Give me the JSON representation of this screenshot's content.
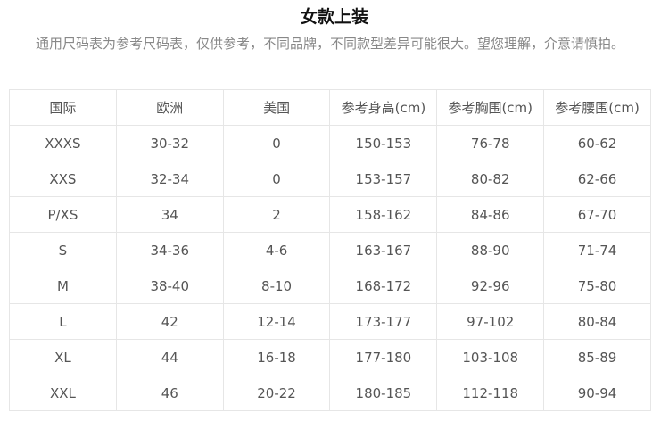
{
  "title": "女款上装",
  "subtitle": "通用尺码表为参考尺码表，仅供参考，不同品牌，不同款型差异可能很大。望您理解，介意请慎拍。",
  "headers": [
    "国际",
    "欧洲",
    "美国",
    "参考身高(cm)",
    "参考胸围(cm)",
    "参考腰围(cm)"
  ],
  "rows": [
    [
      "XXXS",
      "30-32",
      "0",
      "150-153",
      "76-78",
      "60-62"
    ],
    [
      "XXS",
      "32-34",
      "0",
      "153-157",
      "80-82",
      "62-66"
    ],
    [
      "P/XS",
      "34",
      "2",
      "158-162",
      "84-86",
      "67-70"
    ],
    [
      "S",
      "34-36",
      "4-6",
      "163-167",
      "88-90",
      "71-74"
    ],
    [
      "M",
      "38-40",
      "8-10",
      "168-172",
      "92-96",
      "75-80"
    ],
    [
      "L",
      "42",
      "12-14",
      "173-177",
      "97-102",
      "80-84"
    ],
    [
      "XL",
      "44",
      "16-18",
      "177-180",
      "103-108",
      "85-89"
    ],
    [
      "XXL",
      "46",
      "20-22",
      "180-185",
      "112-118",
      "90-94"
    ]
  ]
}
